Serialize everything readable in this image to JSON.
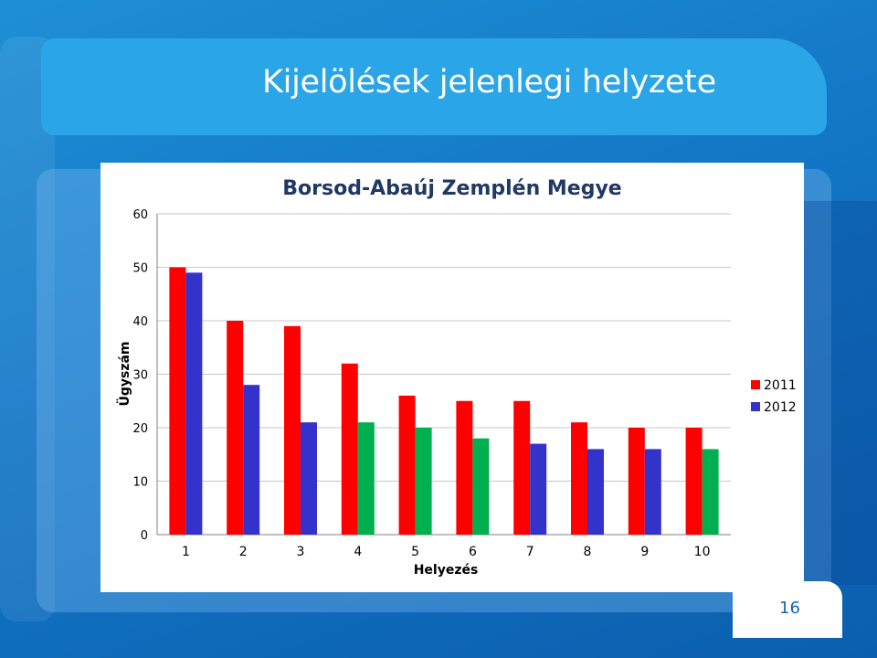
{
  "slide": {
    "title": "Kijelölések jelenlegi helyzete",
    "page_number": "16"
  },
  "chart_data": {
    "type": "bar",
    "title": "Borsod-Abaúj Zemplén Megye",
    "xlabel": "Helyezés",
    "ylabel": "Ügyszám",
    "categories": [
      "1",
      "2",
      "3",
      "4",
      "5",
      "6",
      "7",
      "8",
      "9",
      "10"
    ],
    "series": [
      {
        "name": "2011",
        "color": "#ff0000",
        "values": [
          50,
          40,
          39,
          32,
          26,
          25,
          25,
          21,
          20,
          20
        ]
      },
      {
        "name": "2012",
        "color": "#3333cc",
        "values": [
          49,
          28,
          21,
          21,
          20,
          18,
          17,
          16,
          16,
          16
        ],
        "point_colors": [
          "#3333cc",
          "#3333cc",
          "#3333cc",
          "#00b050",
          "#00b050",
          "#00b050",
          "#3333cc",
          "#3333cc",
          "#3333cc",
          "#00b050"
        ]
      }
    ],
    "ylim": [
      0,
      60
    ],
    "yticks": [
      0,
      10,
      20,
      30,
      40,
      50,
      60
    ],
    "grid": true,
    "legend": "right"
  }
}
